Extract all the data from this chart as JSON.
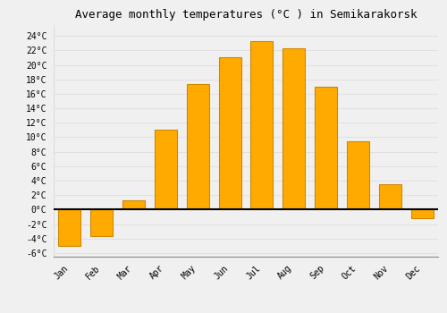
{
  "title": "Average monthly temperatures (°C ) in Semikarakorsk",
  "months": [
    "Jan",
    "Feb",
    "Mar",
    "Apr",
    "May",
    "Jun",
    "Jul",
    "Aug",
    "Sep",
    "Oct",
    "Nov",
    "Dec"
  ],
  "temperatures": [
    -5.0,
    -3.7,
    1.3,
    11.0,
    17.3,
    21.0,
    23.3,
    22.3,
    17.0,
    9.5,
    3.5,
    -1.2
  ],
  "bar_color": "#FFAA00",
  "bar_edge_color": "#CC8800",
  "background_color": "#F0F0F0",
  "grid_color": "#DDDDDD",
  "ylim": [
    -6.5,
    25.5
  ],
  "yticks": [
    -6,
    -4,
    -2,
    0,
    2,
    4,
    6,
    8,
    10,
    12,
    14,
    16,
    18,
    20,
    22,
    24
  ],
  "ytick_labels": [
    "-6°C",
    "-4°C",
    "-2°C",
    "0°C",
    "2°C",
    "4°C",
    "6°C",
    "8°C",
    "10°C",
    "12°C",
    "14°C",
    "16°C",
    "18°C",
    "20°C",
    "22°C",
    "24°C"
  ],
  "title_fontsize": 9,
  "tick_fontsize": 7,
  "font_family": "monospace",
  "bar_width": 0.7
}
